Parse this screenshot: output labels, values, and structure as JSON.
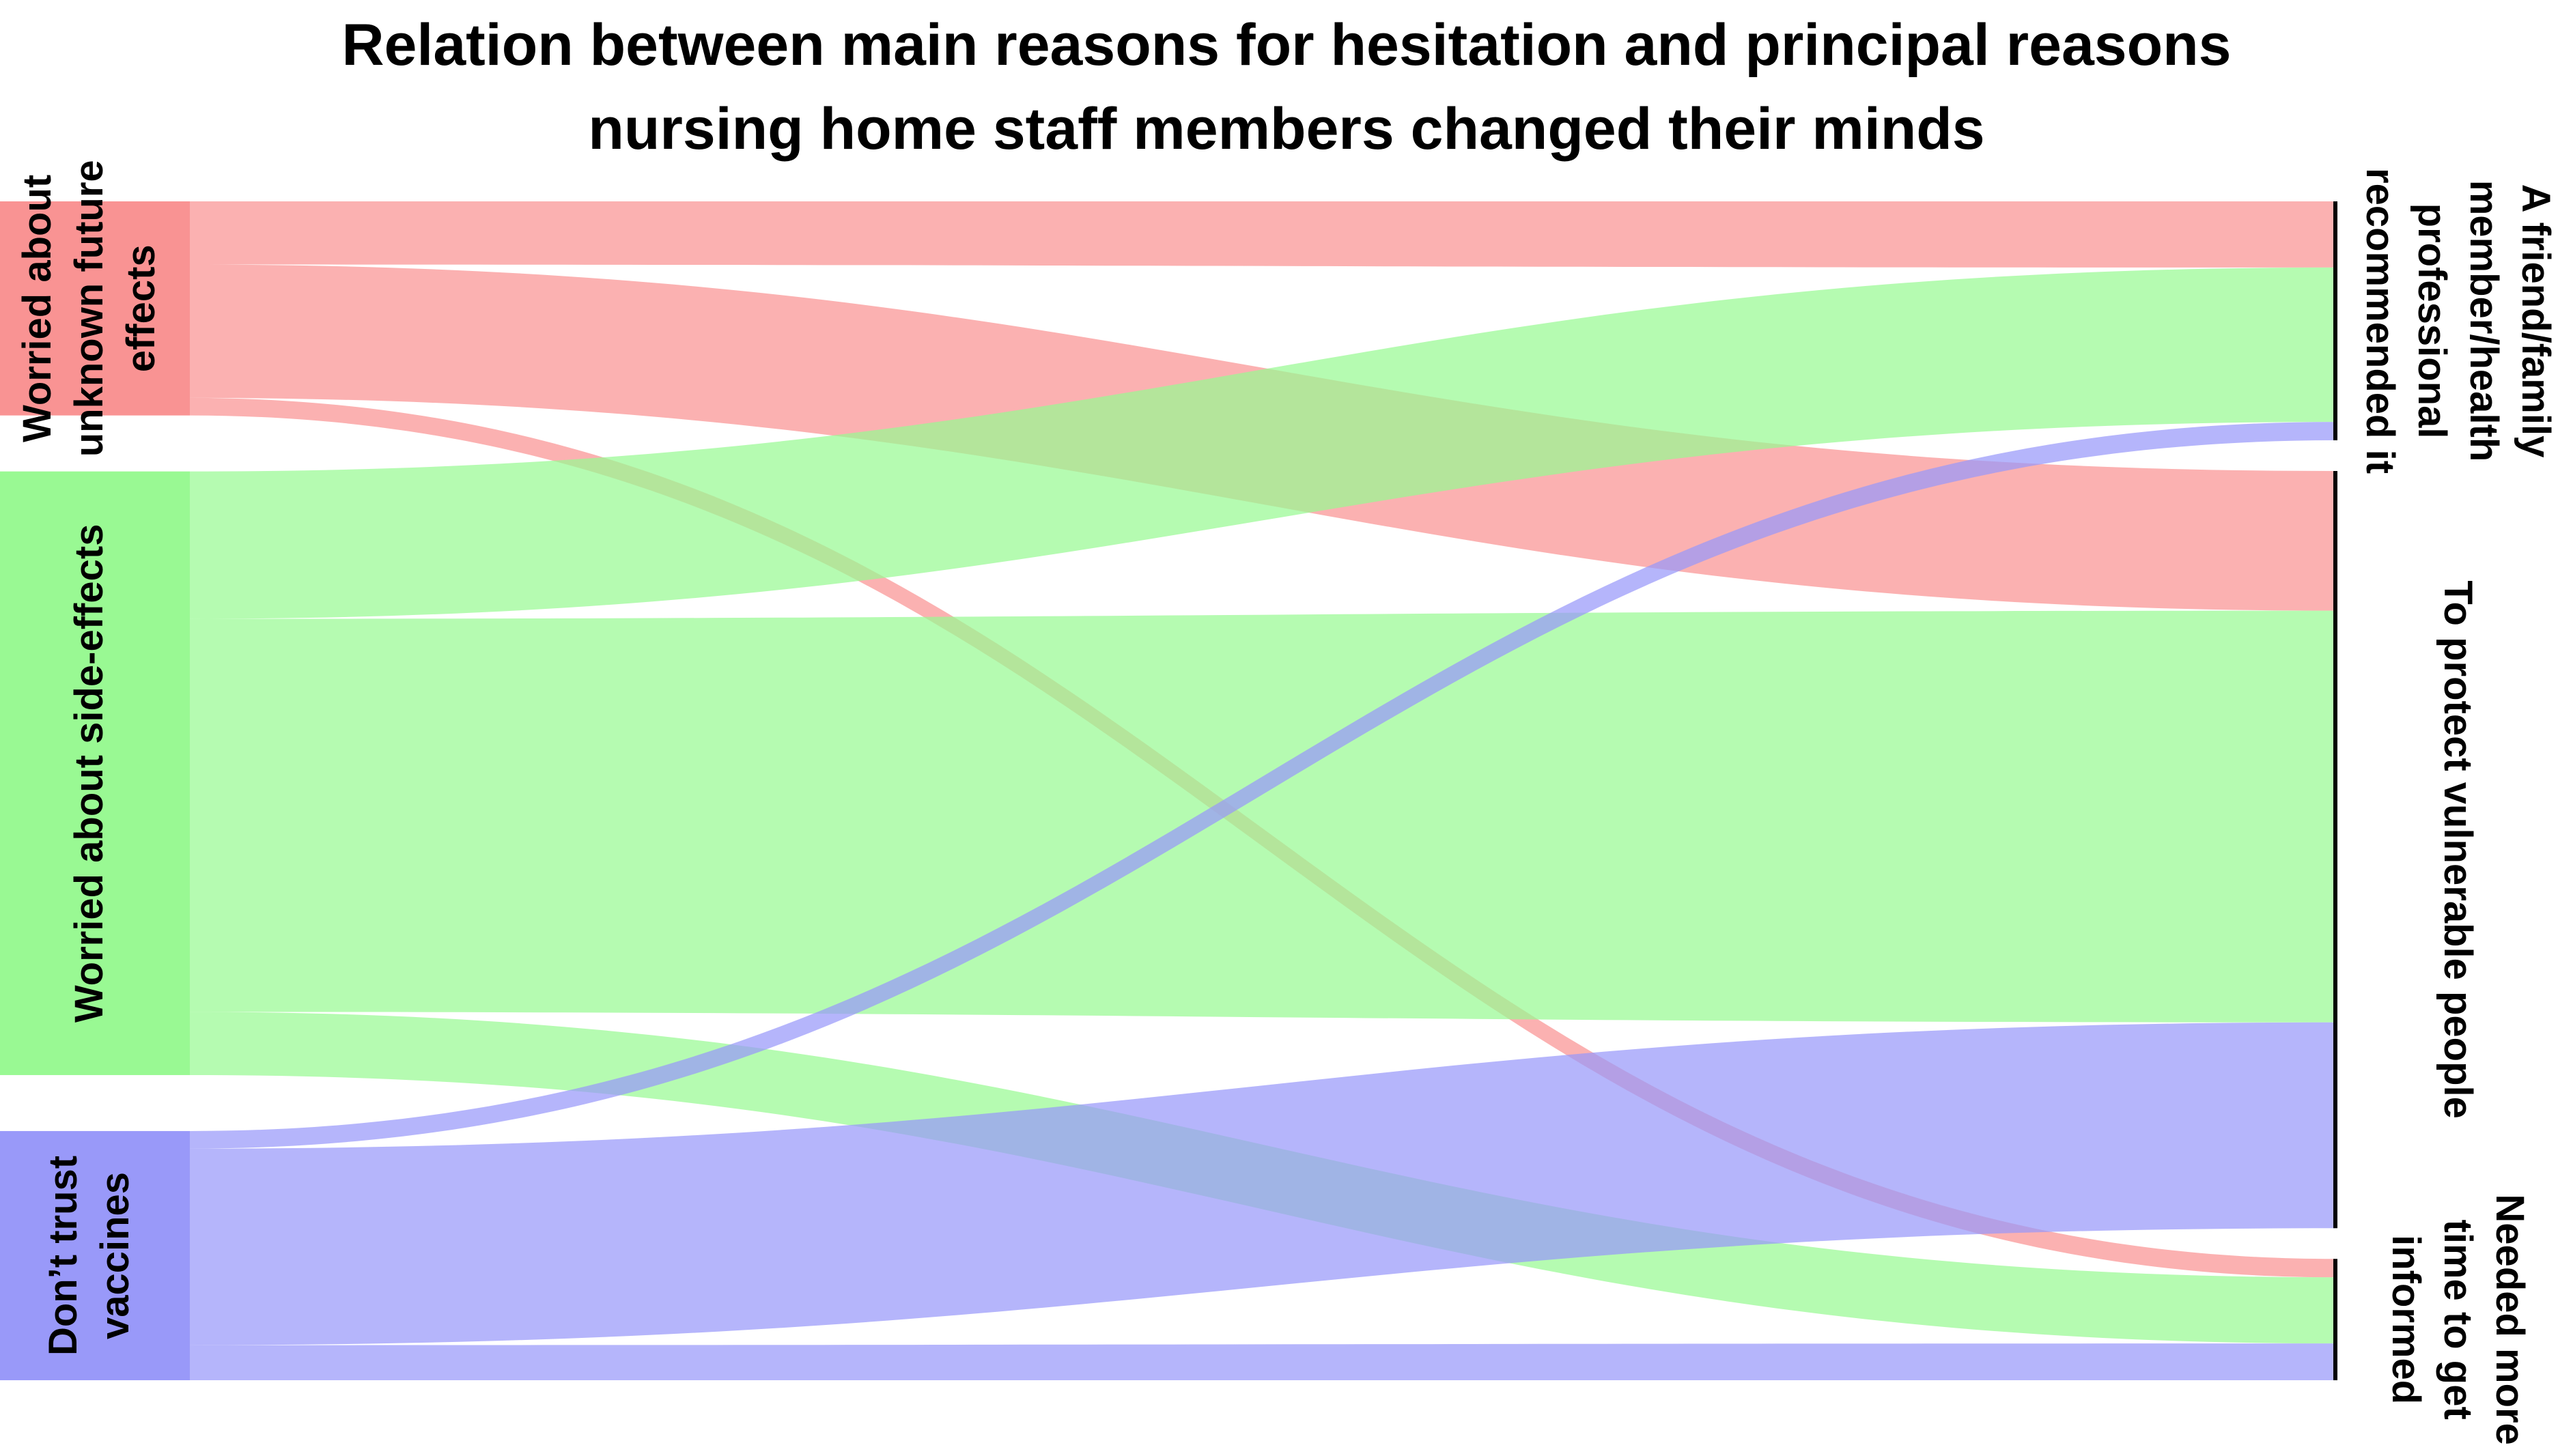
{
  "chart_data": {
    "type": "sankey",
    "title": "Relation between main reasons for hesitation and principal reasons nursing home staff members changed their minds",
    "title_lines": [
      "Relation between main reasons for hesitation and principal reasons",
      "nursing home staff members changed their minds"
    ],
    "source_nodes": [
      {
        "id": "worried_future",
        "label": "Worried about unknown future effects",
        "label_lines": [
          "Worried about",
          "unknown future",
          "effects"
        ],
        "color": "#f99393"
      },
      {
        "id": "worried_side",
        "label": "Worried about side-effects",
        "label_lines": [
          "Worried about side-effects"
        ],
        "color": "#99f993"
      },
      {
        "id": "dont_trust",
        "label": "Don’t trust vaccines",
        "label_lines": [
          "Don’t trust",
          "vaccines"
        ],
        "color": "#9999f9"
      }
    ],
    "target_nodes": [
      {
        "id": "friend_rec",
        "label": "A friend/family member/health professional recommended it",
        "label_lines": [
          "A friend/family",
          "member/health",
          "professional",
          "recommended it"
        ]
      },
      {
        "id": "protect",
        "label": "To protect vulnerable people",
        "label_lines": [
          "To protect vulnerable people"
        ]
      },
      {
        "id": "more_time",
        "label": "Needed more time to get informed",
        "label_lines": [
          "Needed more",
          "time to get",
          "informed"
        ]
      }
    ],
    "flows": [
      {
        "source": "worried_future",
        "target": "friend_rec",
        "value": 9
      },
      {
        "source": "worried_future",
        "target": "protect",
        "value": 19
      },
      {
        "source": "worried_future",
        "target": "more_time",
        "value": 2.5
      },
      {
        "source": "worried_side",
        "target": "friend_rec",
        "value": 21
      },
      {
        "source": "worried_side",
        "target": "protect",
        "value": 56
      },
      {
        "source": "worried_side",
        "target": "more_time",
        "value": 9
      },
      {
        "source": "dont_trust",
        "target": "friend_rec",
        "value": 2.5
      },
      {
        "source": "dont_trust",
        "target": "protect",
        "value": 28
      },
      {
        "source": "dont_trust",
        "target": "more_time",
        "value": 5
      }
    ]
  }
}
